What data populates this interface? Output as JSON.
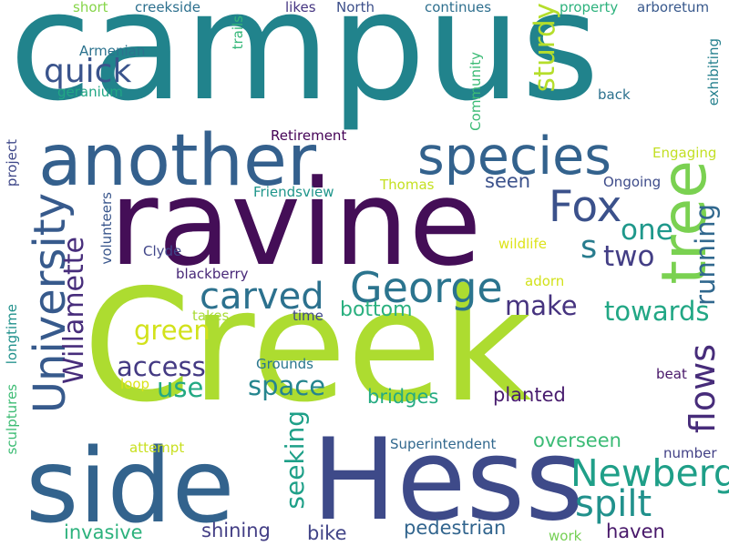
{
  "words": [
    {
      "text": "campus",
      "color": "#21838c"
    },
    {
      "text": "Creek",
      "color": "#addc30"
    },
    {
      "text": "ravine",
      "color": "#440e57"
    },
    {
      "text": "Hess",
      "color": "#3e4a89"
    },
    {
      "text": "side",
      "color": "#33638d"
    },
    {
      "text": "another",
      "color": "#34608d"
    },
    {
      "text": "species",
      "color": "#33628d"
    },
    {
      "text": "tree",
      "color": "#7ad151"
    },
    {
      "text": "University",
      "color": "#375a8c"
    },
    {
      "text": "Fox",
      "color": "#3b518b"
    },
    {
      "text": "George",
      "color": "#2b748e"
    },
    {
      "text": "Newberg",
      "color": "#1f9f88"
    },
    {
      "text": "carved",
      "color": "#2c718e"
    },
    {
      "text": "spilt",
      "color": "#21918c"
    },
    {
      "text": "flows",
      "color": "#472c7a"
    },
    {
      "text": "quick",
      "color": "#3a548c"
    },
    {
      "text": "sturdy",
      "color": "#b5de2b"
    },
    {
      "text": "one",
      "color": "#1f988b"
    },
    {
      "text": "s",
      "color": "#287c8e"
    },
    {
      "text": "two",
      "color": "#433e85"
    },
    {
      "text": "running",
      "color": "#31688e"
    },
    {
      "text": "Willamette",
      "color": "#472d7b"
    },
    {
      "text": "make",
      "color": "#46337f"
    },
    {
      "text": "towards",
      "color": "#22a785"
    },
    {
      "text": "green",
      "color": "#d2e21b"
    },
    {
      "text": "access",
      "color": "#443a83"
    },
    {
      "text": "space",
      "color": "#25858e"
    },
    {
      "text": "use",
      "color": "#23a983"
    },
    {
      "text": "seeking",
      "color": "#1fa088"
    },
    {
      "text": "bottom",
      "color": "#2ab07f"
    },
    {
      "text": "planted",
      "color": "#481c6e"
    },
    {
      "text": "bridges",
      "color": "#25ab82"
    },
    {
      "text": "overseen",
      "color": "#3bbb75"
    },
    {
      "text": "invasive",
      "color": "#2db27d"
    },
    {
      "text": "shining",
      "color": "#433e85"
    },
    {
      "text": "bike",
      "color": "#414487"
    },
    {
      "text": "pedestrian",
      "color": "#32658e"
    },
    {
      "text": "haven",
      "color": "#48186a"
    },
    {
      "text": "seen",
      "color": "#3b518b"
    },
    {
      "text": "short",
      "color": "#86d549"
    },
    {
      "text": "creekside",
      "color": "#2d708e"
    },
    {
      "text": "likes",
      "color": "#453581"
    },
    {
      "text": "North",
      "color": "#3c4f8a"
    },
    {
      "text": "continues",
      "color": "#2e6f8e"
    },
    {
      "text": "property",
      "color": "#2db27d"
    },
    {
      "text": "arboretum",
      "color": "#38588c"
    },
    {
      "text": "Armenian",
      "color": "#2c728e"
    },
    {
      "text": "trails",
      "color": "#35b779"
    },
    {
      "text": "geranium",
      "color": "#21a685"
    },
    {
      "text": "Community",
      "color": "#3bbb75"
    },
    {
      "text": "exhibiting",
      "color": "#26818e"
    },
    {
      "text": "back",
      "color": "#2c718e"
    },
    {
      "text": "Retirement",
      "color": "#440256"
    },
    {
      "text": "Engaging",
      "color": "#c2df23"
    },
    {
      "text": "Thomas",
      "color": "#c5e021"
    },
    {
      "text": "Friendsview",
      "color": "#1f968b"
    },
    {
      "text": "Ongoing",
      "color": "#3e4c8a"
    },
    {
      "text": "project",
      "color": "#3f4889"
    },
    {
      "text": "volunteers",
      "color": "#39568c"
    },
    {
      "text": "Clyde",
      "color": "#404588"
    },
    {
      "text": "wildlife",
      "color": "#dde318"
    },
    {
      "text": "blackberry",
      "color": "#482878"
    },
    {
      "text": "adorn",
      "color": "#d2e21b"
    },
    {
      "text": "takes",
      "color": "#a8db34"
    },
    {
      "text": "time",
      "color": "#3f4788"
    },
    {
      "text": "longtime",
      "color": "#21918c"
    },
    {
      "text": "Grounds",
      "color": "#2a768e"
    },
    {
      "text": "sculptures",
      "color": "#3dbc74"
    },
    {
      "text": "loop",
      "color": "#dae319"
    },
    {
      "text": "beat",
      "color": "#481769"
    },
    {
      "text": "attempt",
      "color": "#c8e020"
    },
    {
      "text": "Superintendent",
      "color": "#31688e"
    },
    {
      "text": "number",
      "color": "#424086"
    },
    {
      "text": "work",
      "color": "#75d054"
    }
  ]
}
